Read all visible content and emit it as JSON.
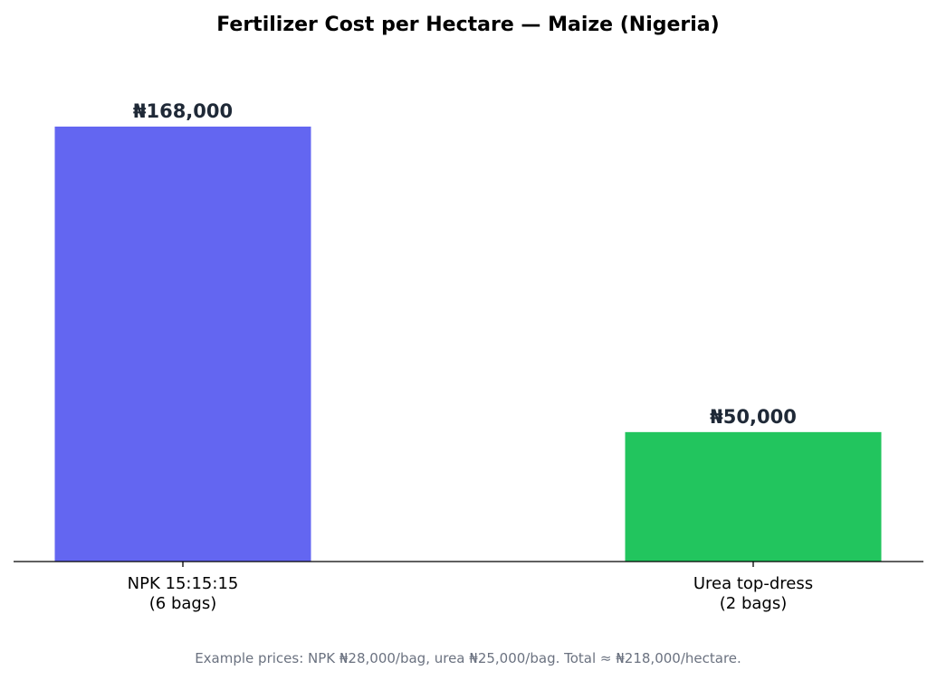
{
  "chart_data": {
    "type": "bar",
    "title": "Fertilizer Cost per Hectare — Maize (Nigeria)",
    "categories": [
      [
        "NPK 15:15:15",
        "(6 bags)"
      ],
      [
        "Urea top-dress",
        "(2 bags)"
      ]
    ],
    "values": [
      168000,
      50000
    ],
    "value_labels": [
      "₦168,000",
      "₦50,000"
    ],
    "colors": [
      "#6366f1",
      "#22c55e"
    ],
    "ylim": [
      0,
      185000
    ],
    "y_axis_visible": false,
    "grid": false,
    "footnote": "Example prices: NPK ₦28,000/bag, urea ₦25,000/bag. Total ≈ ₦218,000/hectare."
  }
}
